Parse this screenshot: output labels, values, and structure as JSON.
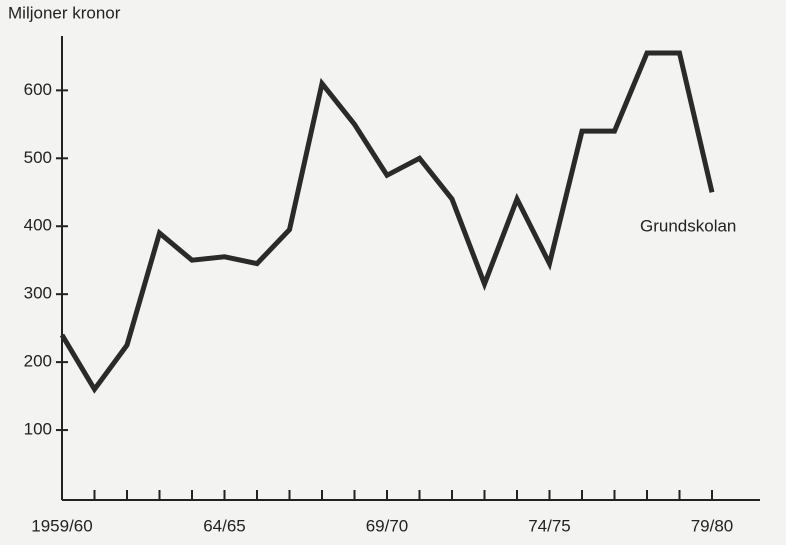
{
  "chart_data": {
    "type": "line",
    "y_axis_label": "Miljoner kronor",
    "categories": [
      "1959/60",
      null,
      null,
      null,
      null,
      "64/65",
      null,
      null,
      null,
      null,
      "69/70",
      null,
      null,
      null,
      null,
      "74/75",
      null,
      null,
      null,
      null,
      "79/80"
    ],
    "series": [
      {
        "name": "Grundskolan",
        "color": "#2a2a2a",
        "values": [
          240,
          160,
          225,
          390,
          350,
          355,
          345,
          395,
          610,
          550,
          475,
          500,
          440,
          315,
          440,
          345,
          540,
          540,
          655,
          655,
          450
        ]
      }
    ],
    "ylim": [
      0,
      680
    ],
    "yticks": [
      100,
      200,
      300,
      400,
      500,
      600
    ]
  }
}
